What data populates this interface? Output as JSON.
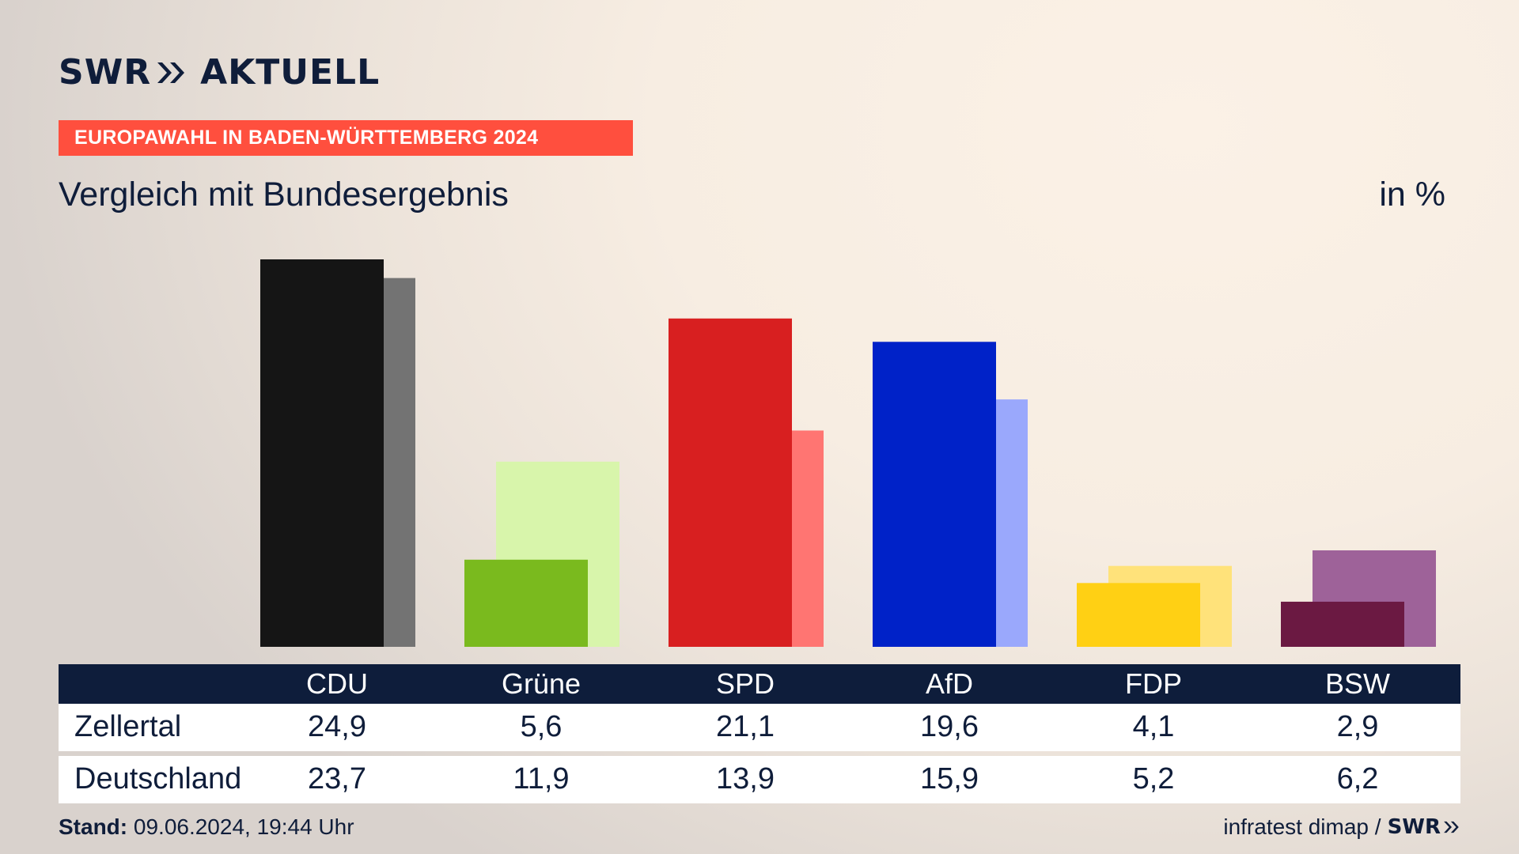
{
  "logo": {
    "word1": "SWR",
    "word2": "AKTUELL",
    "footer_brand": "SWR"
  },
  "banner": "EUROPAWAHL IN BADEN-WÜRTTEMBERG 2024",
  "subtitle": "Vergleich mit Bundesergebnis",
  "unit": "in %",
  "table": {
    "rows": [
      {
        "label": "Zellertal",
        "values": [
          "24,9",
          "5,6",
          "21,1",
          "19,6",
          "4,1",
          "2,9"
        ]
      },
      {
        "label": "Deutschland",
        "values": [
          "23,7",
          "11,9",
          "13,9",
          "15,9",
          "5,2",
          "6,2"
        ]
      }
    ]
  },
  "footer": {
    "stand_label": "Stand:",
    "stand_value": "09.06.2024, 19:44 Uhr",
    "source": "infratest dimap /"
  },
  "chart_data": {
    "type": "bar",
    "categories": [
      "CDU",
      "Grüne",
      "SPD",
      "AfD",
      "FDP",
      "BSW"
    ],
    "series": [
      {
        "name": "Zellertal",
        "values": [
          24.9,
          5.6,
          21.1,
          19.6,
          4.1,
          2.9
        ]
      },
      {
        "name": "Deutschland",
        "values": [
          23.7,
          11.9,
          13.9,
          15.9,
          5.2,
          6.2
        ]
      }
    ],
    "colors": {
      "primary": [
        "#151515",
        "#7aba1e",
        "#d81f20",
        "#0022c8",
        "#ffd014",
        "#6b1942"
      ],
      "secondary": [
        "#737373",
        "#d8f5ab",
        "#ff7572",
        "#9aa8fc",
        "#ffe27a",
        "#9e6299"
      ]
    },
    "ylim": [
      0,
      24.9
    ]
  }
}
